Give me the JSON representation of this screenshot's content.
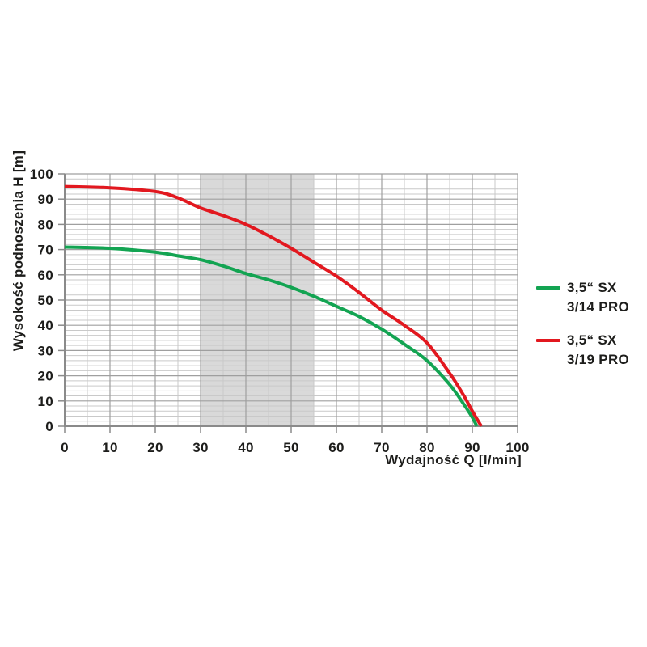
{
  "page": {
    "background": "#ffffff"
  },
  "chart_data": {
    "type": "line",
    "title": "",
    "xlabel": "Wydajność Q [l/min]",
    "ylabel": "Wysokość podnoszenia H [m]",
    "xlim": [
      0,
      100
    ],
    "ylim": [
      0,
      100
    ],
    "x_ticks": [
      0,
      10,
      20,
      30,
      40,
      50,
      60,
      70,
      80,
      90,
      100
    ],
    "y_ticks": [
      0,
      10,
      20,
      30,
      40,
      50,
      60,
      70,
      80,
      90,
      100
    ],
    "x_minor_step": 5,
    "y_minor_step": 2,
    "grid": true,
    "legend_position": "right-outside",
    "highlight_band": {
      "x_from": 30,
      "x_to": 55,
      "color": "#d9d9d9"
    },
    "series": [
      {
        "name": "3,5“ SX 3/14 PRO",
        "legend_lines": [
          "3,5“ SX",
          "3/14 PRO"
        ],
        "color": "#13a452",
        "points": [
          [
            0,
            71
          ],
          [
            10,
            70.5
          ],
          [
            20,
            69
          ],
          [
            25,
            67.5
          ],
          [
            30,
            66
          ],
          [
            35,
            63.5
          ],
          [
            40,
            60.5
          ],
          [
            45,
            58
          ],
          [
            50,
            55
          ],
          [
            55,
            51.5
          ],
          [
            60,
            47.5
          ],
          [
            65,
            43.5
          ],
          [
            70,
            38.5
          ],
          [
            75,
            32.5
          ],
          [
            80,
            26
          ],
          [
            85,
            16.5
          ],
          [
            88,
            9
          ],
          [
            90,
            3.5
          ],
          [
            91,
            0
          ]
        ]
      },
      {
        "name": "3,5“ SX 3/19 PRO",
        "legend_lines": [
          "3,5“ SX",
          "3/19 PRO"
        ],
        "color": "#e2181f",
        "points": [
          [
            0,
            95
          ],
          [
            10,
            94.5
          ],
          [
            20,
            93
          ],
          [
            25,
            90.5
          ],
          [
            30,
            86.5
          ],
          [
            35,
            83.5
          ],
          [
            40,
            80
          ],
          [
            45,
            75.5
          ],
          [
            50,
            70.5
          ],
          [
            55,
            65
          ],
          [
            60,
            59.5
          ],
          [
            65,
            53
          ],
          [
            70,
            46
          ],
          [
            75,
            40
          ],
          [
            80,
            33
          ],
          [
            85,
            21
          ],
          [
            88,
            12.5
          ],
          [
            90,
            6
          ],
          [
            92,
            0
          ]
        ]
      }
    ],
    "colors": {
      "text": "#1d1d1b",
      "major_grid": "#9f9f9f",
      "minor_grid": "#c9c9c9",
      "axis": "#8a8a8a"
    }
  }
}
